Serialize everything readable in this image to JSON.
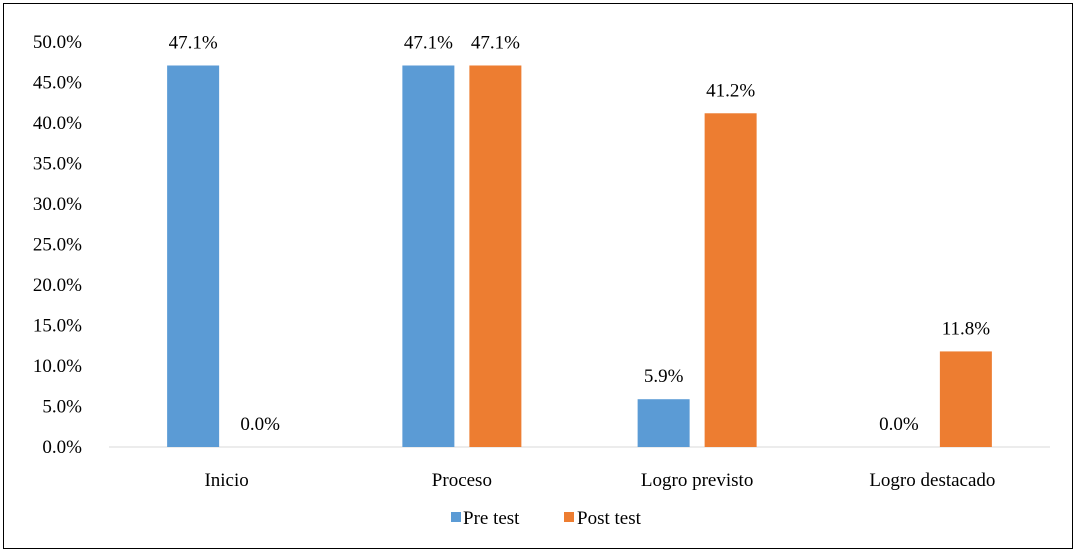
{
  "chart_data": {
    "type": "bar",
    "title": "",
    "xlabel": "",
    "ylabel": "",
    "categories": [
      "Inicio",
      "Proceso",
      "Logro previsto",
      "Logro destacado"
    ],
    "series": [
      {
        "name": "Pre test",
        "values": [
          47.1,
          47.1,
          5.9,
          0.0
        ],
        "labels": [
          "47.1%",
          "47.1%",
          "5.9%",
          "0.0%"
        ],
        "color": "#5B9BD5"
      },
      {
        "name": "Post test",
        "values": [
          0.0,
          47.1,
          41.2,
          11.8
        ],
        "labels": [
          "0.0%",
          "47.1%",
          "41.2%",
          "11.8%"
        ],
        "color": "#ED7D31"
      }
    ],
    "ylim": [
      0,
      50
    ],
    "yticks": [
      0,
      5,
      10,
      15,
      20,
      25,
      30,
      35,
      40,
      45,
      50
    ],
    "ytick_labels": [
      "0.0%",
      "5.0%",
      "10.0%",
      "15.0%",
      "20.0%",
      "25.0%",
      "30.0%",
      "35.0%",
      "40.0%",
      "45.0%",
      "50.0%"
    ],
    "grid": false,
    "legend": "bottom-center"
  }
}
